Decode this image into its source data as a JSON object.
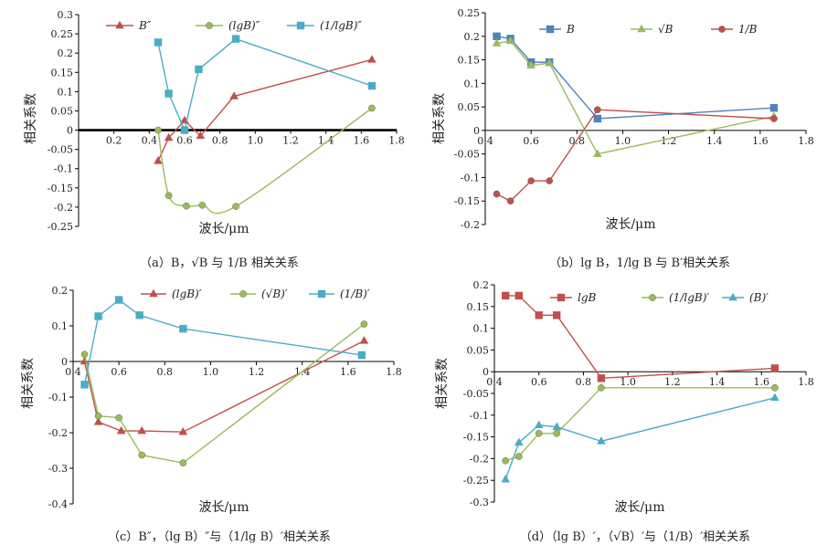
{
  "chart_data": [
    {
      "type": "line",
      "ylabel": "相关系数",
      "xlabel": "波长/μm",
      "caption": "（a）B，√B 与 1/B 相关关系",
      "xlim": [
        0,
        1.8
      ],
      "ylim": [
        -0.25,
        0.3
      ],
      "xticks": [
        0.2,
        0.4,
        0.6,
        0.8,
        1.0,
        1.2,
        1.4,
        1.6,
        1.8
      ],
      "xtick_labels": [
        "0.2",
        "0.4",
        "0.6",
        "0.8",
        "1.0",
        "1.2",
        "1.4",
        "1.6",
        "1.8"
      ],
      "yticks": [
        -0.25,
        -0.2,
        -0.15,
        -0.1,
        -0.05,
        0,
        0.05,
        0.1,
        0.15,
        0.2,
        0.25,
        0.3
      ],
      "ytick_labels": [
        "-0.25",
        "-0.2",
        "-0.15",
        "-0.1",
        "-0.05",
        "0",
        "0.05",
        "0.1",
        "0.15",
        "0.2",
        "0.25",
        "0.3"
      ],
      "legend_position": "top",
      "series": [
        {
          "name": "B″",
          "color": "#c0504d",
          "marker": "triangle",
          "x": [
            0.45,
            0.51,
            0.6,
            0.69,
            0.88,
            1.66
          ],
          "y": [
            -0.08,
            -0.02,
            0.025,
            -0.015,
            0.088,
            0.183
          ]
        },
        {
          "name": "(lgB)″",
          "color": "#9bbb59",
          "marker": "circle",
          "smooth": true,
          "x": [
            0.45,
            0.51,
            0.61,
            0.7,
            0.89,
            1.66
          ],
          "y": [
            0.0,
            -0.17,
            -0.197,
            -0.195,
            -0.198,
            0.057
          ]
        },
        {
          "name": "(1/lgB)″",
          "color": "#4bacc6",
          "marker": "square",
          "x": [
            0.45,
            0.51,
            0.6,
            0.68,
            0.89,
            1.66
          ],
          "y": [
            0.228,
            0.095,
            0.0,
            0.158,
            0.237,
            0.115
          ]
        }
      ]
    },
    {
      "type": "line",
      "ylabel": "相关系数",
      "xlabel": "波长/μm",
      "caption": "（b）lg B，1/lg B 与 B′相关关系",
      "xlim": [
        0.4,
        1.8
      ],
      "ylim": [
        -0.2,
        0.25
      ],
      "xticks": [
        0.4,
        0.6,
        0.8,
        1.0,
        1.2,
        1.4,
        1.6,
        1.8
      ],
      "xtick_labels": [
        "0.4",
        "0.6",
        "0.8",
        "1.0",
        "1.2",
        "1.4",
        "1.6",
        "1.8"
      ],
      "yticks": [
        -0.2,
        -0.15,
        -0.1,
        -0.05,
        0,
        0.05,
        0.1,
        0.15,
        0.2,
        0.25
      ],
      "ytick_labels": [
        "-0.2",
        "-0.15",
        "-0.1",
        "-0.05",
        "0",
        "0.05",
        "0.1",
        "0.15",
        "0.2",
        "0.25"
      ],
      "legend_position": "top",
      "series": [
        {
          "name": "B",
          "color": "#4f81bd",
          "marker": "square",
          "x": [
            0.45,
            0.51,
            0.6,
            0.68,
            0.89,
            1.66
          ],
          "y": [
            0.2,
            0.195,
            0.145,
            0.145,
            0.025,
            0.048
          ]
        },
        {
          "name": "√B",
          "color": "#9bbb59",
          "marker": "triangle",
          "x": [
            0.45,
            0.51,
            0.6,
            0.68,
            0.89,
            1.66
          ],
          "y": [
            0.185,
            0.19,
            0.138,
            0.143,
            -0.05,
            0.03
          ]
        },
        {
          "name": "1/B",
          "color": "#c0504d",
          "marker": "circle",
          "x": [
            0.45,
            0.51,
            0.6,
            0.68,
            0.89,
            1.66
          ],
          "y": [
            -0.135,
            -0.15,
            -0.107,
            -0.107,
            0.044,
            0.025
          ]
        }
      ]
    },
    {
      "type": "line",
      "ylabel": "相关系数",
      "xlabel": "波长/μm",
      "caption": "（c）B″，（lg B）″与（1/lg B）′相关关系",
      "xlim": [
        0.4,
        1.8
      ],
      "ylim": [
        -0.4,
        0.2
      ],
      "xticks": [
        0.4,
        0.6,
        0.8,
        1.0,
        1.2,
        1.4,
        1.6,
        1.8
      ],
      "xtick_labels": [
        "0.4",
        "0.6",
        "0.8",
        "1.0",
        "1.2",
        "1.4",
        "1.6",
        "1.8"
      ],
      "yticks": [
        -0.4,
        -0.3,
        -0.2,
        -0.1,
        0,
        0.1,
        0.2
      ],
      "ytick_labels": [
        "-0.4",
        "-0.3",
        "-0.2",
        "-0.1",
        "0",
        "0.1",
        "0.2"
      ],
      "legend_position": "top",
      "series": [
        {
          "name": "(lgB)′",
          "color": "#c0504d",
          "marker": "triangle",
          "x": [
            0.45,
            0.51,
            0.61,
            0.7,
            0.88,
            1.67
          ],
          "y": [
            0.0,
            -0.17,
            -0.195,
            -0.195,
            -0.198,
            0.058
          ]
        },
        {
          "name": "(√B)′",
          "color": "#9bbb59",
          "marker": "circle",
          "x": [
            0.45,
            0.51,
            0.6,
            0.7,
            0.88,
            1.67
          ],
          "y": [
            0.02,
            -0.153,
            -0.158,
            -0.263,
            -0.285,
            0.105
          ]
        },
        {
          "name": "(1/B)′",
          "color": "#4bacc6",
          "marker": "square",
          "x": [
            0.45,
            0.51,
            0.6,
            0.69,
            0.88,
            1.66
          ],
          "y": [
            -0.065,
            0.127,
            0.173,
            0.13,
            0.092,
            0.018
          ]
        }
      ]
    },
    {
      "type": "line",
      "ylabel": "相关系数",
      "xlabel": "波长/μm",
      "caption": "（d）（lg B）′，（√B）′与（1/B）′相关关系",
      "xlim": [
        0.4,
        1.8
      ],
      "ylim": [
        -0.3,
        0.2
      ],
      "xticks": [
        0.4,
        0.6,
        0.8,
        1.0,
        1.2,
        1.4,
        1.6,
        1.8
      ],
      "xtick_labels": [
        "0.4",
        "0.6",
        "0.8",
        "1.0",
        "1.2",
        "1.4",
        "1.6",
        "1.8"
      ],
      "yticks": [
        -0.3,
        -0.25,
        -0.2,
        -0.15,
        -0.1,
        -0.05,
        0,
        0.05,
        0.1,
        0.15,
        0.2
      ],
      "ytick_labels": [
        "-0.3",
        "-0.25",
        "-0.2",
        "-0.15",
        "-0.1",
        "-0.05",
        "0",
        "0.05",
        "0.1",
        "0.15",
        "0.2"
      ],
      "legend_position": "top",
      "series": [
        {
          "name": "lgB",
          "color": "#c0504d",
          "marker": "square",
          "x": [
            0.45,
            0.51,
            0.6,
            0.68,
            0.88,
            1.66
          ],
          "y": [
            0.175,
            0.175,
            0.13,
            0.13,
            -0.015,
            0.008
          ]
        },
        {
          "name": "(1/lgB)′",
          "color": "#9bbb59",
          "marker": "circle",
          "x": [
            0.45,
            0.51,
            0.6,
            0.68,
            0.88,
            1.66
          ],
          "y": [
            -0.205,
            -0.195,
            -0.142,
            -0.142,
            -0.037,
            -0.037
          ]
        },
        {
          "name": "(B)′",
          "color": "#4bacc6",
          "marker": "triangle",
          "x": [
            0.45,
            0.51,
            0.6,
            0.68,
            0.88,
            1.66
          ],
          "y": [
            -0.248,
            -0.163,
            -0.123,
            -0.127,
            -0.16,
            -0.06
          ]
        }
      ]
    }
  ]
}
